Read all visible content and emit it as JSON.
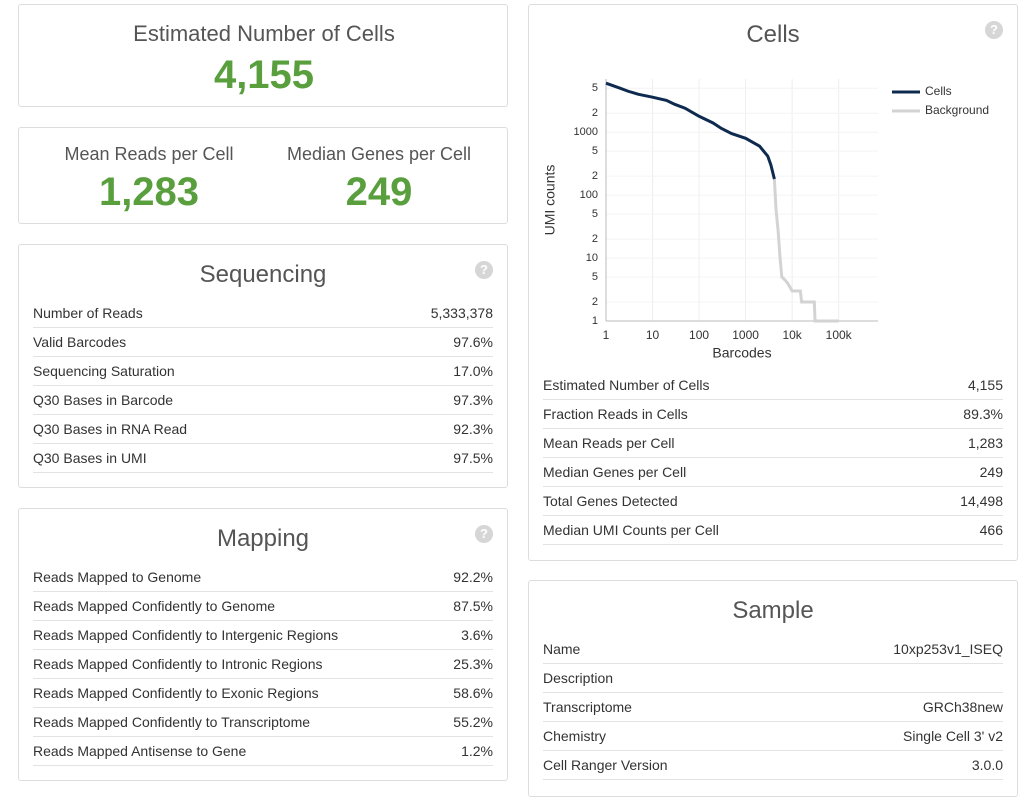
{
  "help": "?",
  "summary": {
    "estimated_cells": {
      "label": "Estimated Number of Cells",
      "value": "4,155"
    },
    "mean_reads": {
      "label": "Mean Reads per Cell",
      "value": "1,283"
    },
    "median_genes": {
      "label": "Median Genes per Cell",
      "value": "249"
    }
  },
  "sequencing": {
    "title": "Sequencing",
    "rows": [
      [
        "Number of Reads",
        "5,333,378"
      ],
      [
        "Valid Barcodes",
        "97.6%"
      ],
      [
        "Sequencing Saturation",
        "17.0%"
      ],
      [
        "Q30 Bases in Barcode",
        "97.3%"
      ],
      [
        "Q30 Bases in RNA Read",
        "92.3%"
      ],
      [
        "Q30 Bases in UMI",
        "97.5%"
      ]
    ]
  },
  "mapping": {
    "title": "Mapping",
    "rows": [
      [
        "Reads Mapped to Genome",
        "92.2%"
      ],
      [
        "Reads Mapped Confidently to Genome",
        "87.5%"
      ],
      [
        "Reads Mapped Confidently to Intergenic Regions",
        "3.6%"
      ],
      [
        "Reads Mapped Confidently to Intronic Regions",
        "25.3%"
      ],
      [
        "Reads Mapped Confidently to Exonic Regions",
        "58.6%"
      ],
      [
        "Reads Mapped Confidently to Transcriptome",
        "55.2%"
      ],
      [
        "Reads Mapped Antisense to Gene",
        "1.2%"
      ]
    ]
  },
  "cells": {
    "title": "Cells",
    "rows": [
      [
        "Estimated Number of Cells",
        "4,155"
      ],
      [
        "Fraction Reads in Cells",
        "89.3%"
      ],
      [
        "Mean Reads per Cell",
        "1,283"
      ],
      [
        "Median Genes per Cell",
        "249"
      ],
      [
        "Total Genes Detected",
        "14,498"
      ],
      [
        "Median UMI Counts per Cell",
        "466"
      ]
    ]
  },
  "sample": {
    "title": "Sample",
    "rows": [
      [
        "Name",
        "10xp253v1_ISEQ"
      ],
      [
        "Description"
      ],
      [
        "Transcriptome",
        "GRCh38new"
      ],
      [
        "Chemistry",
        "Single Cell 3' v2"
      ],
      [
        "Cell Ranger Version",
        "3.0.0"
      ]
    ]
  },
  "chart_data": {
    "type": "line",
    "xlabel": "Barcodes",
    "ylabel": "UMI counts",
    "log_x": true,
    "log_y": true,
    "grid": true,
    "legend": "top-right",
    "xlim": [
      1,
      700000
    ],
    "ylim": [
      1,
      7000
    ],
    "xticks": [
      1,
      10,
      100,
      1000,
      {
        "value": 10000,
        "label": "10k"
      },
      {
        "value": 100000,
        "label": "100k"
      }
    ],
    "yticks": [
      1,
      2,
      5,
      10,
      {
        "value": 20,
        "label": "2"
      },
      {
        "value": 50,
        "label": "5"
      },
      100,
      {
        "value": 200,
        "label": "2"
      },
      {
        "value": 500,
        "label": "5"
      },
      1000,
      {
        "value": 2000,
        "label": "2"
      },
      {
        "value": 5000,
        "label": "5"
      }
    ],
    "series": [
      {
        "name": "Cells",
        "color": "#0e2b4f",
        "x": [
          1,
          2,
          3,
          5,
          10,
          20,
          30,
          50,
          100,
          200,
          300,
          500,
          1000,
          2000,
          3000,
          3500,
          4155
        ],
        "values": [
          6000,
          5000,
          4470,
          4000,
          3600,
          3200,
          2770,
          2400,
          1790,
          1400,
          1150,
          950,
          800,
          600,
          415,
          300,
          180
        ]
      },
      {
        "name": "Background",
        "color": "#d3d3d3",
        "x": [
          4155,
          4500,
          5000,
          5500,
          6000,
          7000,
          8000,
          10000,
          15000,
          16000,
          30000,
          31000,
          100000
        ],
        "values": [
          180,
          60,
          27,
          10,
          5,
          4.5,
          4,
          3,
          3,
          2,
          2,
          1,
          1
        ]
      }
    ]
  }
}
